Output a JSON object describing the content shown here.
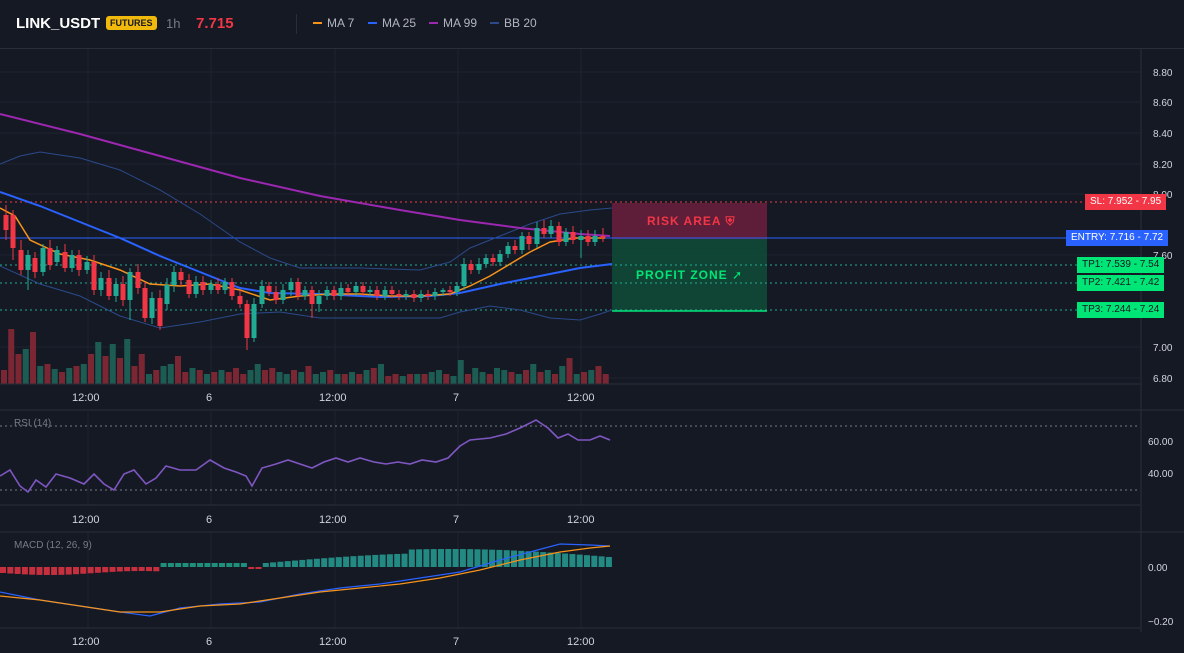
{
  "header": {
    "symbol": "LINK_USDT",
    "badge": "FUTURES",
    "timeframe": "1h",
    "price": "7.715",
    "legend": [
      {
        "label": "MA 7",
        "color": "#f7931a"
      },
      {
        "label": "MA 25",
        "color": "#2962ff"
      },
      {
        "label": "MA 99",
        "color": "#9c27b0"
      },
      {
        "label": "BB 20",
        "color": "#2a4a8a"
      }
    ]
  },
  "colors": {
    "up": "#22ab94",
    "down": "#f23645",
    "bg": "#151924"
  },
  "price_axis": {
    "ticks": [
      "8.80",
      "8.60",
      "8.40",
      "8.20",
      "8.00",
      "7.60",
      "7.00",
      "6.80"
    ]
  },
  "time_axis": {
    "ticks": [
      "12:00",
      "6",
      "12:00",
      "7",
      "12:00"
    ]
  },
  "levels": {
    "sl": "SL: 7.952 - 7.95",
    "entry": "ENTRY: 7.716 - 7.72",
    "tp1": "TP1: 7.539 - 7.54",
    "tp2": "TP2: 7.421 - 7.42",
    "tp3": "TP3: 7.244 - 7.24"
  },
  "zones": {
    "risk": "RISK AREA",
    "profit": "PROFIT ZONE"
  },
  "rsi": {
    "label": "RSI (14)",
    "ticks": [
      "60.00",
      "40.00"
    ]
  },
  "macd": {
    "label": "MACD (12, 26, 9)",
    "ticks": [
      "0.00",
      "−0.20"
    ]
  }
}
